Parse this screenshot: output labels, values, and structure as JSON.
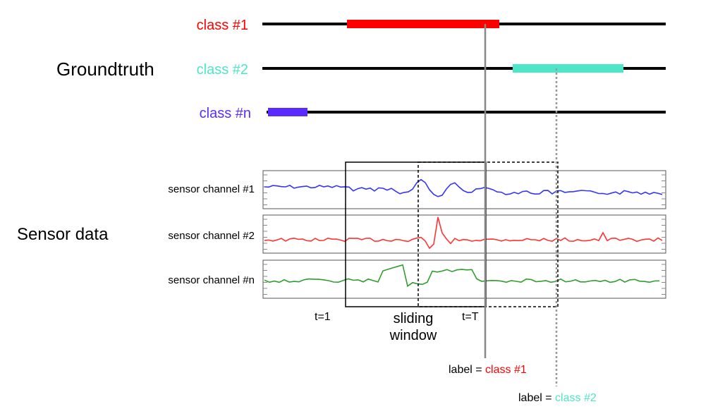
{
  "groundtruth": {
    "title": "Groundtruth",
    "classes": [
      {
        "label": "class #1",
        "color": "#ff0000"
      },
      {
        "label": "class #2",
        "color": "#4ee6c8"
      },
      {
        "label": "class #n",
        "color": "#5a2bff"
      }
    ]
  },
  "sensor": {
    "title": "Sensor data",
    "channels": [
      {
        "label": "sensor channel #1",
        "color": "#3333ff"
      },
      {
        "label": "sensor channel #2",
        "color": "#ff3333"
      },
      {
        "label": "sensor channel #n",
        "color": "#2e9e2e"
      }
    ]
  },
  "window": {
    "start_label": "t=1",
    "end_label": "t=T",
    "caption_line1": "sliding",
    "caption_line2": "window"
  },
  "labels": [
    {
      "prefix": "label = ",
      "value": "class #1",
      "color": "#ff0000"
    },
    {
      "prefix": "label = ",
      "value": "class #2",
      "color": "#4ee6c8"
    }
  ]
}
